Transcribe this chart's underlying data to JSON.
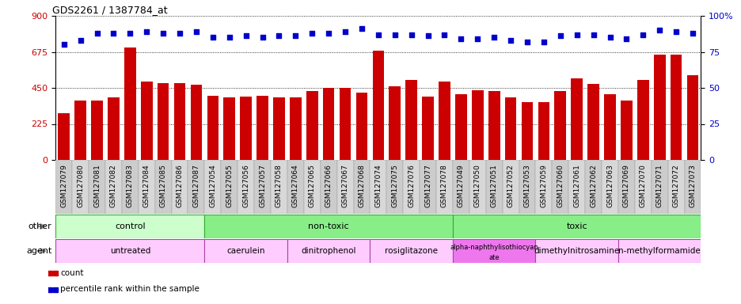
{
  "title": "GDS2261 / 1387784_at",
  "samples": [
    "GSM127079",
    "GSM127080",
    "GSM127081",
    "GSM127082",
    "GSM127083",
    "GSM127084",
    "GSM127085",
    "GSM127086",
    "GSM127087",
    "GSM127054",
    "GSM127055",
    "GSM127056",
    "GSM127057",
    "GSM127058",
    "GSM127064",
    "GSM127065",
    "GSM127066",
    "GSM127067",
    "GSM127068",
    "GSM127074",
    "GSM127075",
    "GSM127076",
    "GSM127077",
    "GSM127078",
    "GSM127049",
    "GSM127050",
    "GSM127051",
    "GSM127052",
    "GSM127053",
    "GSM127059",
    "GSM127060",
    "GSM127061",
    "GSM127062",
    "GSM127063",
    "GSM127069",
    "GSM127070",
    "GSM127071",
    "GSM127072",
    "GSM127073"
  ],
  "counts": [
    290,
    370,
    370,
    390,
    700,
    490,
    480,
    480,
    470,
    400,
    390,
    395,
    400,
    390,
    390,
    430,
    450,
    450,
    420,
    680,
    460,
    500,
    395,
    490,
    410,
    435,
    430,
    390,
    360,
    360,
    430,
    510,
    475,
    410,
    370,
    500,
    660,
    660,
    530
  ],
  "percentiles": [
    80,
    83,
    88,
    88,
    88,
    89,
    88,
    88,
    89,
    85,
    85,
    86,
    85,
    86,
    86,
    88,
    88,
    89,
    91,
    87,
    87,
    87,
    86,
    87,
    84,
    84,
    85,
    83,
    82,
    82,
    86,
    87,
    87,
    85,
    84,
    87,
    90,
    89,
    88
  ],
  "ylim_left": [
    0,
    900
  ],
  "ylim_right": [
    0,
    100
  ],
  "yticks_left": [
    0,
    225,
    450,
    675,
    900
  ],
  "yticks_right": [
    0,
    25,
    50,
    75,
    100
  ],
  "bar_color": "#cc0000",
  "dot_color": "#0000cc",
  "other_segments": [
    {
      "label": "control",
      "start": 0,
      "end": 9,
      "color": "#ccffcc"
    },
    {
      "label": "non-toxic",
      "start": 9,
      "end": 24,
      "color": "#88ee88"
    },
    {
      "label": "toxic",
      "start": 24,
      "end": 39,
      "color": "#88ee88"
    }
  ],
  "agent_segments": [
    {
      "label": "untreated",
      "start": 0,
      "end": 9,
      "color": "#ffccff"
    },
    {
      "label": "caerulein",
      "start": 9,
      "end": 14,
      "color": "#ffccff"
    },
    {
      "label": "dinitrophenol",
      "start": 14,
      "end": 19,
      "color": "#ffccff"
    },
    {
      "label": "rosiglitazone",
      "start": 19,
      "end": 24,
      "color": "#ffccff"
    },
    {
      "label": "alpha-naphthylisothiocyanate",
      "start": 24,
      "end": 29,
      "color": "#ee77ee"
    },
    {
      "label": "dimethylnitrosamine",
      "start": 29,
      "end": 34,
      "color": "#ffccff"
    },
    {
      "label": "n-methylformamide",
      "start": 34,
      "end": 39,
      "color": "#ffccff"
    }
  ],
  "xtick_bg": "#d0d0d0",
  "left_label_color": "#888888",
  "arrow_color": "#888888"
}
